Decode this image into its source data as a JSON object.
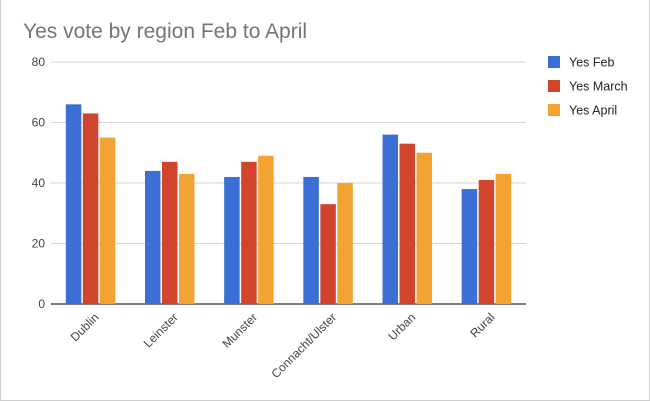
{
  "chart_data": {
    "type": "bar",
    "title": "Yes vote by region Feb to April",
    "xlabel": "",
    "ylabel": "",
    "categories": [
      "Dublin",
      "Leinster",
      "Munster",
      "Connacht/Ulster",
      "Urban",
      "Rural"
    ],
    "series": [
      {
        "name": "Yes Feb",
        "color": "#3b6fd6",
        "values": [
          66,
          44,
          42,
          42,
          56,
          38
        ]
      },
      {
        "name": "Yes March",
        "color": "#d2452d",
        "values": [
          63,
          47,
          47,
          33,
          53,
          41
        ]
      },
      {
        "name": "Yes April",
        "color": "#f2a332",
        "values": [
          55,
          43,
          49,
          40,
          50,
          43
        ]
      }
    ],
    "ylim": [
      0,
      80
    ],
    "yticks": [
      "0",
      "20",
      "40",
      "60",
      "80"
    ],
    "grid": true,
    "legend_position": "right"
  }
}
